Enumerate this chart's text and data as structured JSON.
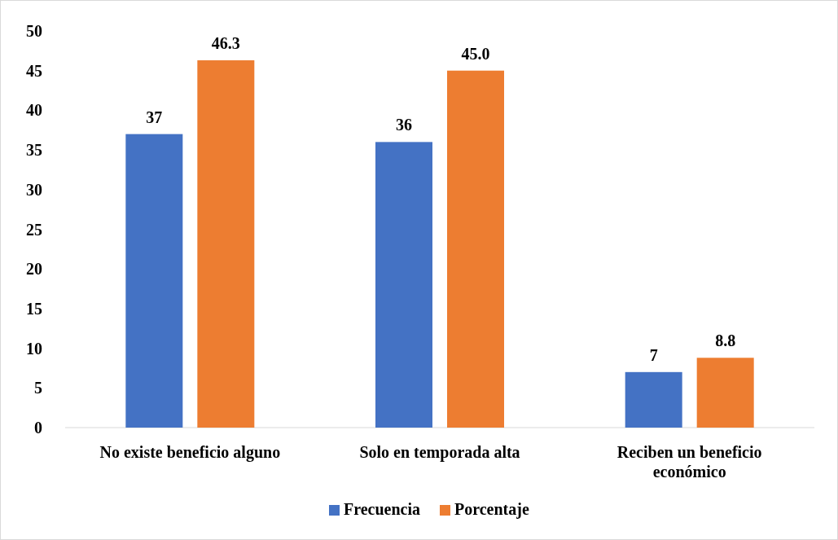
{
  "chart_data": {
    "type": "bar",
    "categories": [
      "No existe beneficio alguno",
      "Solo en temporada alta",
      "Reciben un beneficio económico"
    ],
    "series": [
      {
        "name": "Frecuencia",
        "color": "#4472c4",
        "values": [
          37,
          36,
          7
        ],
        "value_labels": [
          "37",
          "36",
          "7"
        ]
      },
      {
        "name": "Porcentaje",
        "color": "#ed7d31",
        "values": [
          46.3,
          45.0,
          8.8
        ],
        "value_labels": [
          "46.3",
          "45.0",
          "8.8"
        ]
      }
    ],
    "ylim": [
      0,
      50
    ],
    "yticks": [
      0,
      5,
      10,
      15,
      20,
      25,
      30,
      35,
      40,
      45,
      50
    ],
    "grid": false,
    "legend": "bottom"
  }
}
